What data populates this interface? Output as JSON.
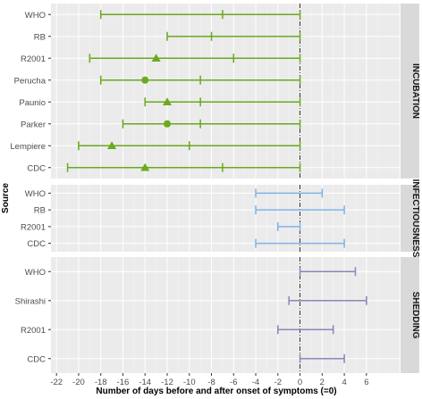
{
  "chart_data": {
    "type": "interval",
    "xlabel": "Number of days before and after onset of symptoms (=0)",
    "ylabel": "Source",
    "xlim": [
      -22.5,
      9
    ],
    "xticks": [
      -22,
      -20,
      -18,
      -16,
      -14,
      -12,
      -10,
      -8,
      -6,
      -4,
      -2,
      0,
      2,
      4,
      6
    ],
    "grid": true,
    "reference_line": 0,
    "panels": [
      {
        "name": "INCUBATION",
        "color": "#6aaa1e",
        "rows": [
          {
            "source": "WHO",
            "low": -18,
            "mid": -7,
            "high": 0,
            "marker": "none"
          },
          {
            "source": "RB",
            "low": -12,
            "mid": -8,
            "high": 0,
            "marker": "none"
          },
          {
            "source": "R2001",
            "low": -19,
            "mid": -6,
            "high": 0,
            "point": -13,
            "marker": "triangle"
          },
          {
            "source": "Perucha",
            "low": -18,
            "mid": -9,
            "high": 0,
            "point": -14,
            "marker": "circle"
          },
          {
            "source": "Paunio",
            "low": -14,
            "mid": -9,
            "high": 0,
            "point": -12,
            "marker": "triangle"
          },
          {
            "source": "Parker",
            "low": -16,
            "mid": -9,
            "high": 0,
            "point": -12,
            "marker": "circle"
          },
          {
            "source": "Lempiere",
            "low": -20,
            "mid": -10,
            "high": 0,
            "point": -17,
            "marker": "triangle"
          },
          {
            "source": "CDC",
            "low": -21,
            "mid": -7,
            "high": 0,
            "point": -14,
            "marker": "triangle"
          }
        ]
      },
      {
        "name": "INFECTIOUSNESS",
        "color": "#7fb4ea",
        "rows": [
          {
            "source": "WHO",
            "low": -4,
            "high": 2
          },
          {
            "source": "RB",
            "low": -4,
            "high": 4
          },
          {
            "source": "R2001",
            "low": -2,
            "high": 0
          },
          {
            "source": "CDC",
            "low": -4,
            "high": 4
          }
        ]
      },
      {
        "name": "SHEDDING",
        "color": "#8b86b8",
        "rows": [
          {
            "source": "WHO",
            "low": 0,
            "high": 5
          },
          {
            "source": "Shirashi",
            "low": -1,
            "high": 6
          },
          {
            "source": "R2001",
            "low": -2,
            "high": 3
          },
          {
            "source": "CDC",
            "low": 0,
            "high": 4
          }
        ]
      }
    ]
  }
}
